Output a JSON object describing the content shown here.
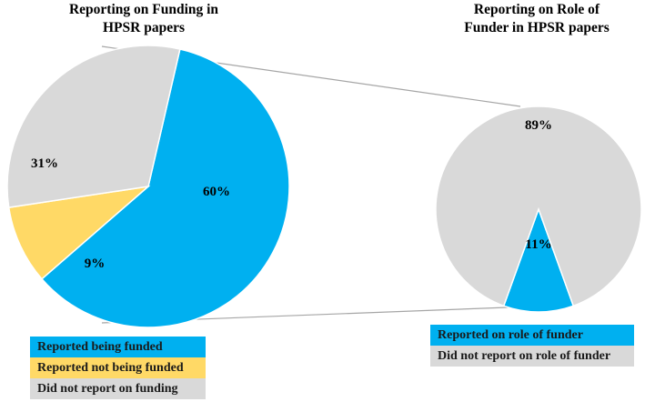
{
  "chart_data": [
    {
      "type": "pie",
      "title": [
        "Reporting on Funding in",
        "HPSR papers"
      ],
      "slices": [
        {
          "label": "Reported being funded",
          "value": 60,
          "display": "60%",
          "color": "#00B0F0"
        },
        {
          "label": "Reported not being funded",
          "value": 9,
          "display": "9%",
          "color": "#FFD966"
        },
        {
          "label": "Did not report on funding",
          "value": 31,
          "display": "31%",
          "color": "#D9D9D9"
        }
      ]
    },
    {
      "type": "pie",
      "title": [
        "Reporting on Role of",
        "Funder in HPSR papers"
      ],
      "slices": [
        {
          "label": "Reported on role of funder",
          "value": 11,
          "display": "11%",
          "color": "#00B0F0"
        },
        {
          "label": "Did not report on role of funder",
          "value": 89,
          "display": "89%",
          "color": "#D9D9D9"
        }
      ]
    }
  ],
  "legend_left": [
    {
      "label": "Reported being funded",
      "color": "#00B0F0"
    },
    {
      "label": "Reported not being funded",
      "color": "#FFD966"
    },
    {
      "label": "Did not report on funding",
      "color": "#D9D9D9"
    }
  ],
  "legend_right": [
    {
      "label": "Reported on role of funder",
      "color": "#00B0F0"
    },
    {
      "label": "Did not report on role of funder",
      "color": "#D9D9D9"
    }
  ],
  "connector_color": "#A6A6A6"
}
